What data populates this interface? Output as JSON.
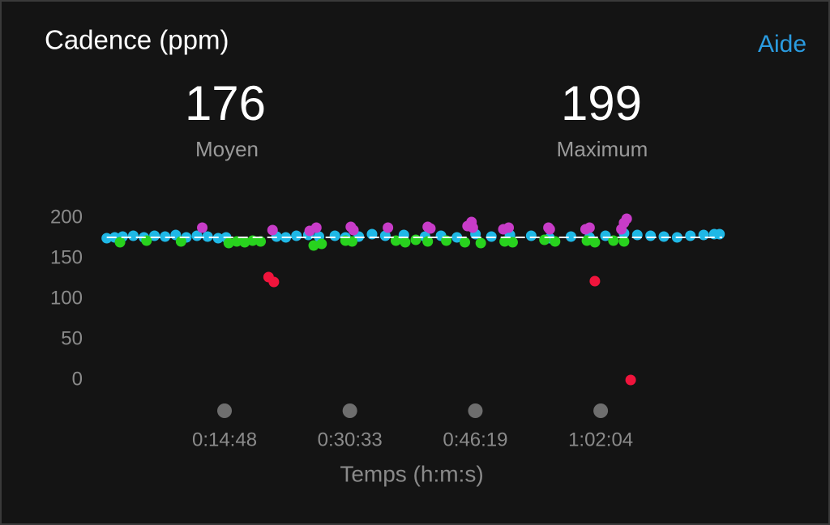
{
  "chart_data": {
    "type": "scatter",
    "title": "Cadence (ppm)",
    "help": "Aide",
    "average": 176,
    "average_label": "Moyen",
    "maximum": 199,
    "maximum_label": "Maximum",
    "x_label": "Temps (h:m:s)",
    "xlim": [
      0,
      4640
    ],
    "ylim": [
      0,
      200
    ],
    "yticks": [
      0,
      50,
      100,
      150,
      200
    ],
    "xticks": [
      {
        "value": 888,
        "label": "0:14:48"
      },
      {
        "value": 1833,
        "label": "0:30:33"
      },
      {
        "value": 2779,
        "label": "0:46:19"
      },
      {
        "value": 3724,
        "label": "1:02:04"
      }
    ],
    "series": [
      {
        "color": "#1fb8e6",
        "x": [
          0,
          60,
          120,
          200,
          280,
          360,
          440,
          520,
          600,
          680,
          760,
          840,
          900,
          1280,
          1350,
          1430,
          1520,
          1600,
          1720,
          1800,
          1900,
          2000,
          2100,
          2240,
          2400,
          2520,
          2640,
          2780,
          2900,
          3040,
          3200,
          3340,
          3500,
          3640,
          3760,
          3900,
          4000,
          4100,
          4200,
          4300,
          4400,
          4500,
          4580,
          4620
        ],
        "values": [
          175,
          176,
          177,
          178,
          176,
          178,
          177,
          179,
          176,
          178,
          177,
          175,
          176,
          177,
          176,
          178,
          179,
          177,
          178,
          176,
          177,
          180,
          178,
          179,
          177,
          178,
          176,
          180,
          177,
          179,
          178,
          175,
          177,
          176,
          178,
          181,
          179,
          178,
          177,
          176,
          178,
          179,
          180,
          180
        ]
      },
      {
        "color": "#28d21e",
        "x": [
          100,
          300,
          560,
          920,
          980,
          1040,
          1100,
          1160,
          1560,
          1620,
          1800,
          1850,
          2180,
          2250,
          2330,
          2420,
          2560,
          2700,
          2820,
          3000,
          3060,
          3300,
          3380,
          3620,
          3680,
          3820,
          3900
        ],
        "values": [
          170,
          172,
          171,
          169,
          171,
          170,
          172,
          171,
          166,
          168,
          172,
          171,
          172,
          170,
          173,
          171,
          172,
          170,
          169,
          171,
          170,
          173,
          171,
          172,
          170,
          172,
          171
        ]
      },
      {
        "color": "#c83cc8",
        "x": [
          720,
          1250,
          1530,
          1580,
          1840,
          1860,
          2120,
          2420,
          2440,
          2720,
          2750,
          2760,
          2990,
          3030,
          3330,
          3340,
          3610,
          3640,
          3880,
          3900,
          3920
        ],
        "values": [
          188,
          185,
          184,
          188,
          189,
          185,
          188,
          189,
          187,
          190,
          195,
          188,
          186,
          188,
          188,
          186,
          186,
          188,
          186,
          194,
          199
        ]
      },
      {
        "color": "#f0143c",
        "x": [
          1220,
          1260,
          3680,
          3950
        ],
        "values": [
          127,
          121,
          122,
          0
        ]
      }
    ]
  }
}
